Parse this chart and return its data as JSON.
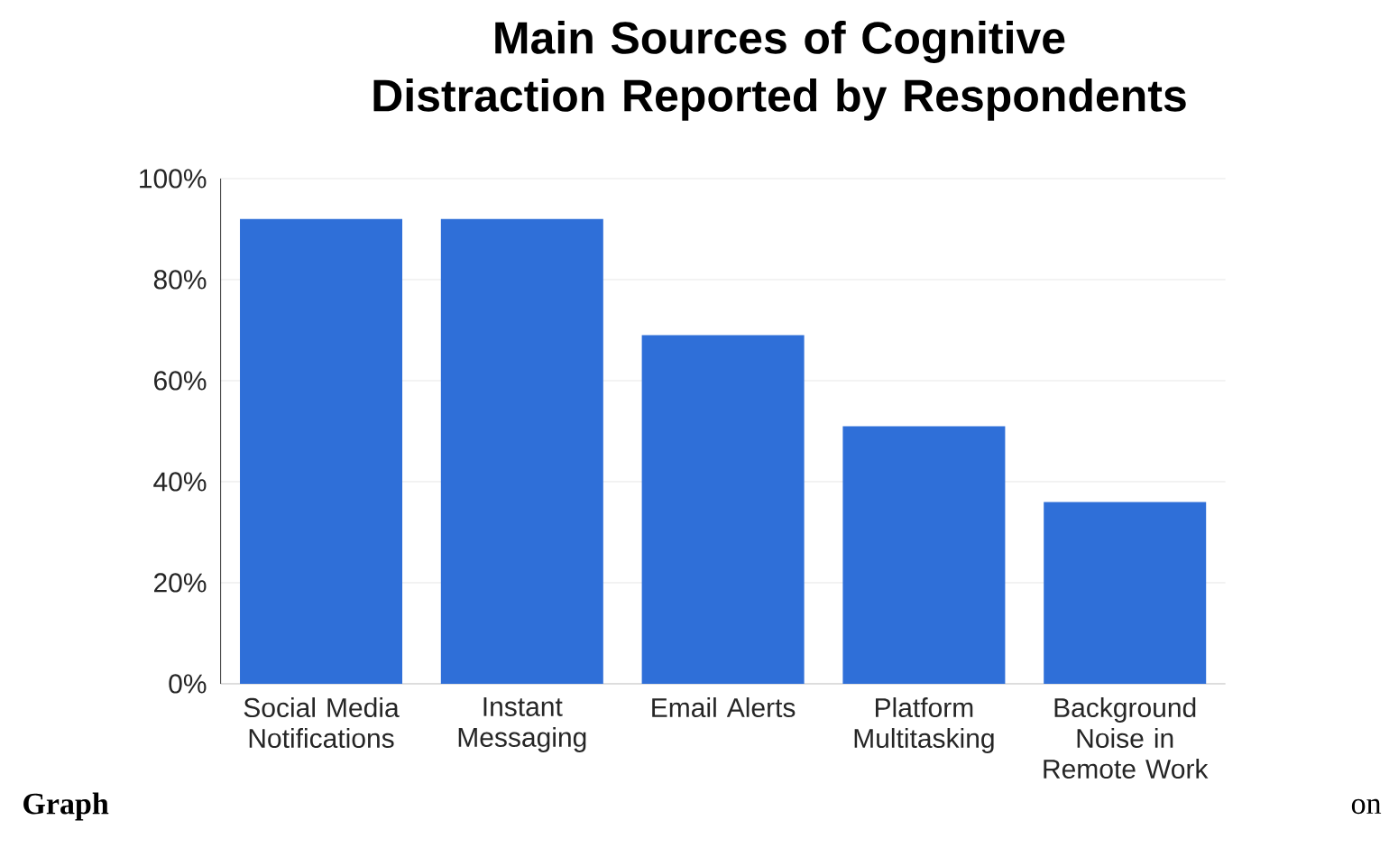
{
  "chart_data": {
    "type": "bar",
    "title": "Main Sources of Cognitive Distraction Reported by Respondents",
    "categories": [
      "Social Media Notifications",
      "Instant Messaging",
      "Email Alerts",
      "Platform Multitasking",
      "Background Noise in Remote Work"
    ],
    "values": [
      92,
      92,
      69,
      51,
      36
    ],
    "color": "#2f6fd8",
    "ylim": [
      0,
      100
    ],
    "yticks": [
      {
        "value": 0,
        "label": "0%"
      },
      {
        "value": 20,
        "label": "20%"
      },
      {
        "value": 40,
        "label": "40%"
      },
      {
        "value": 60,
        "label": "60%"
      },
      {
        "value": 80,
        "label": "80%"
      },
      {
        "value": 100,
        "label": "100%"
      }
    ],
    "grid": "y",
    "annotations": [
      "Graph",
      "on"
    ]
  }
}
